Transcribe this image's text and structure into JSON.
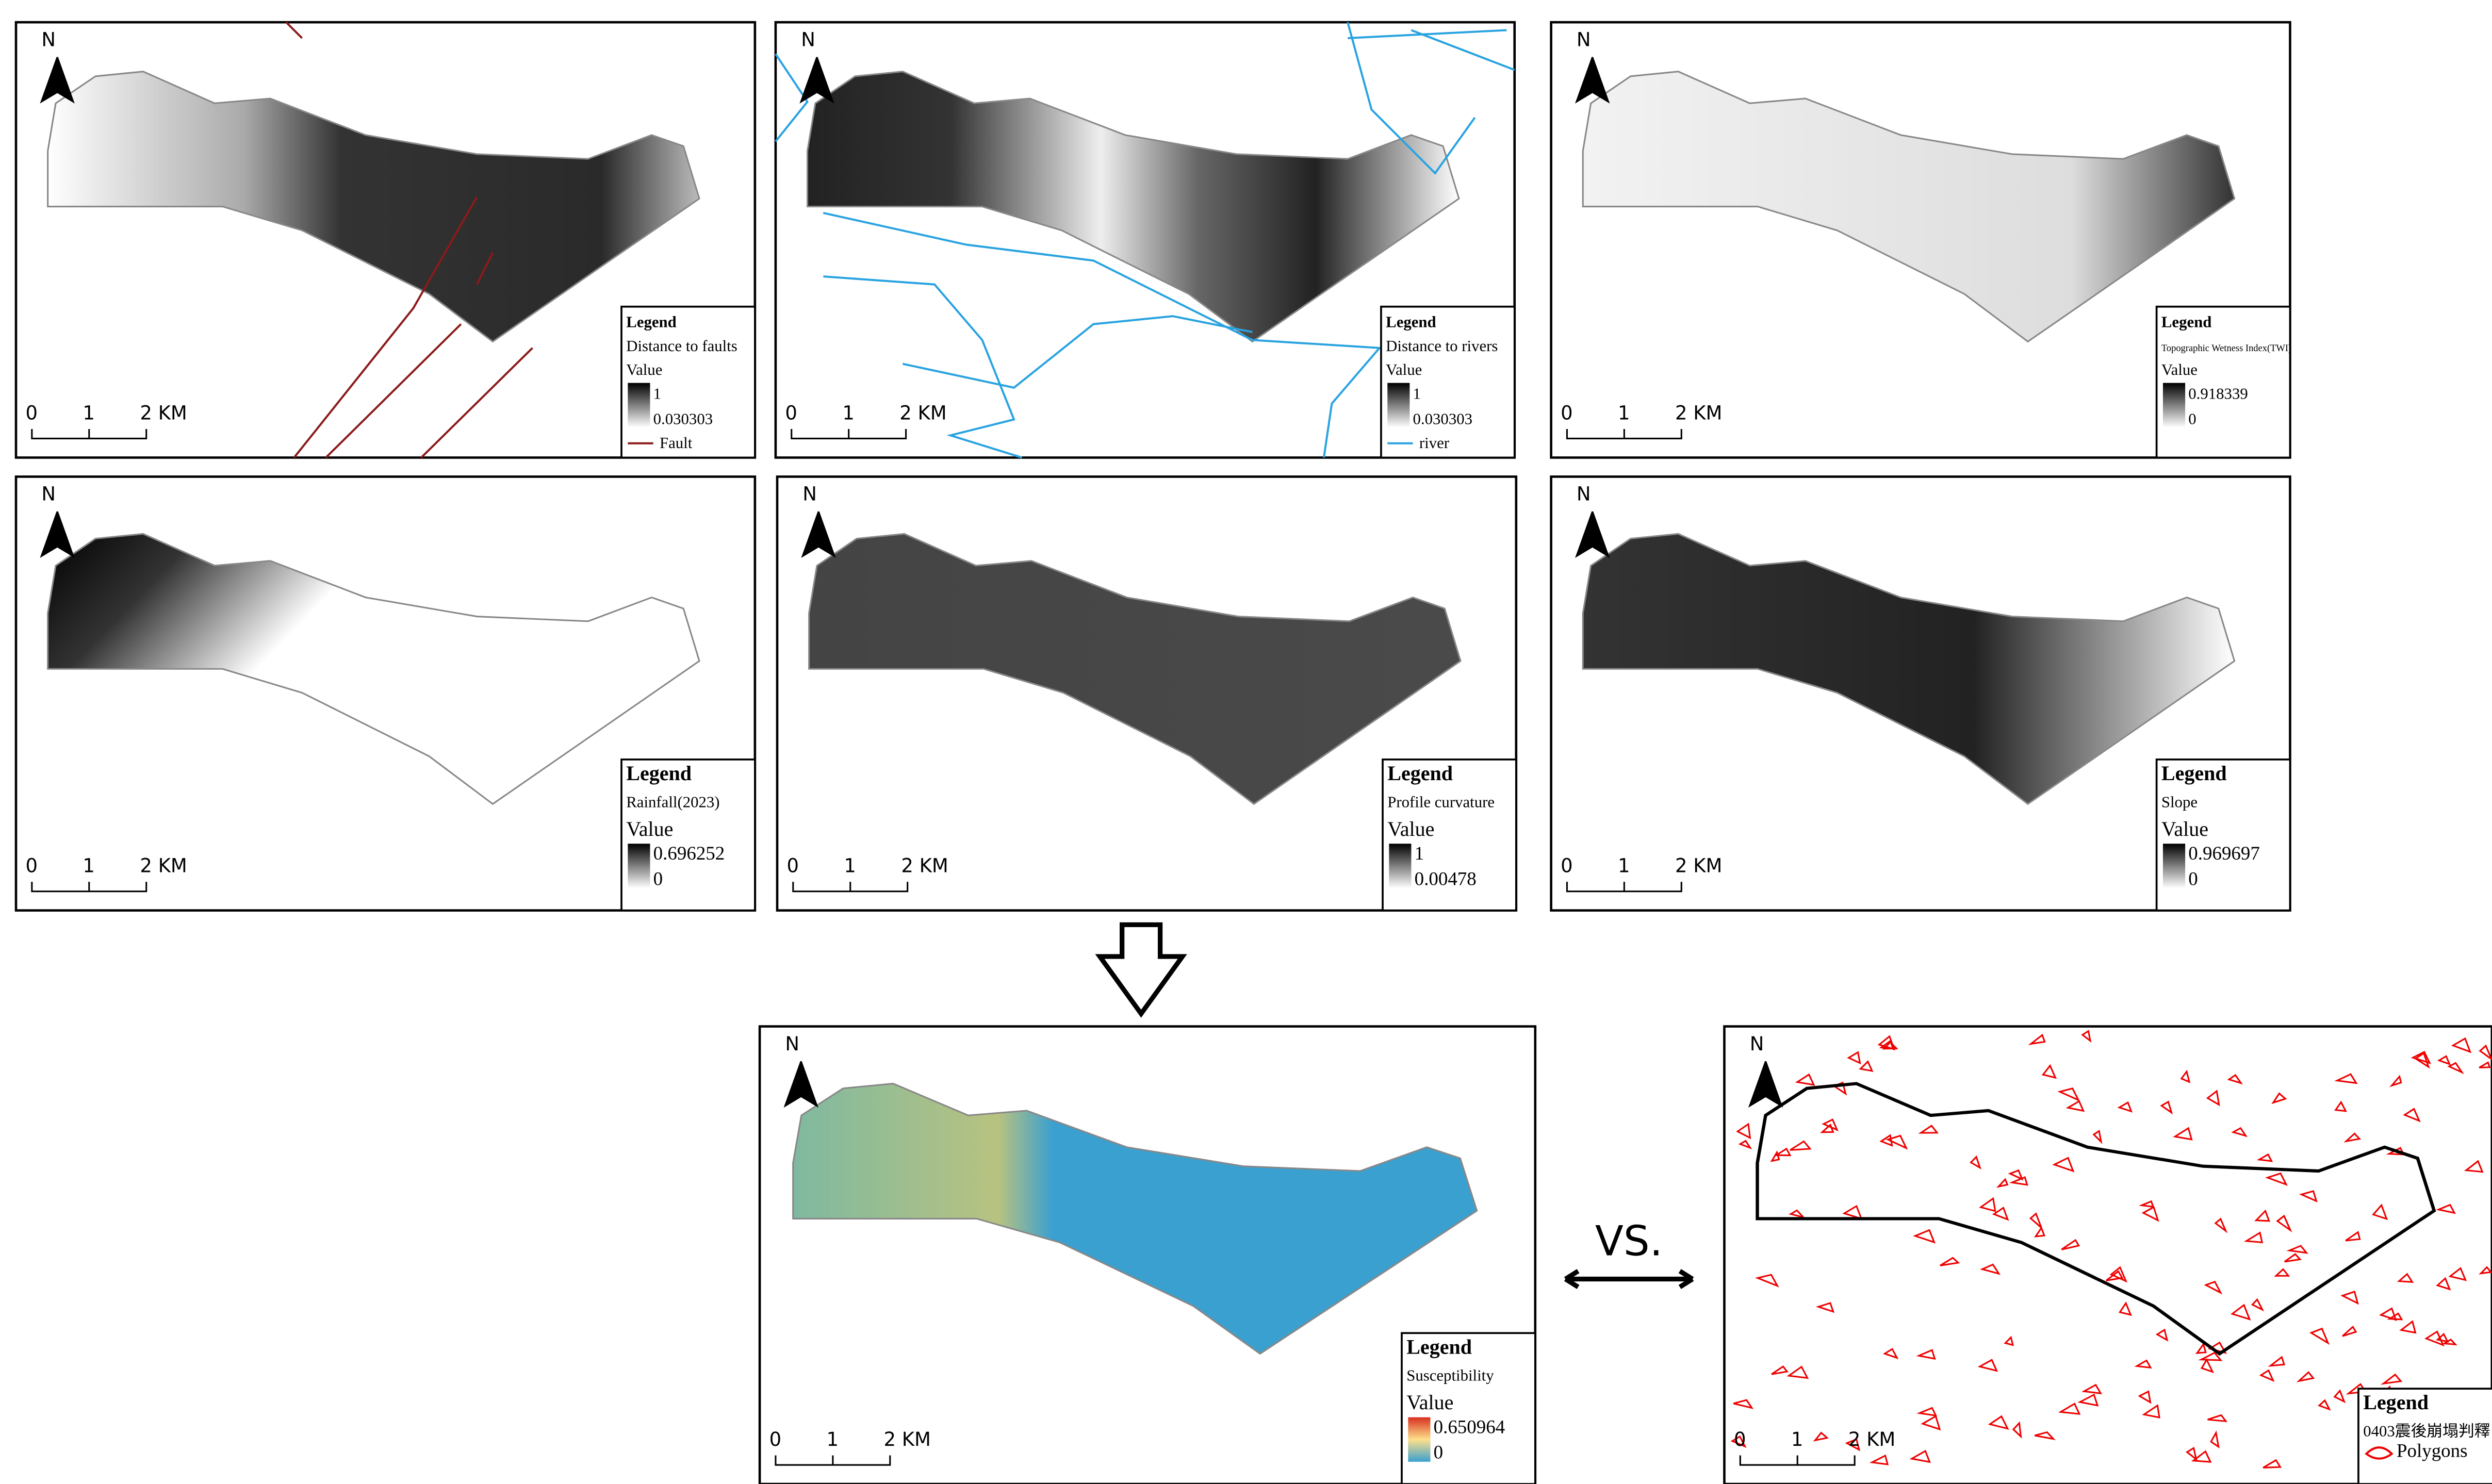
{
  "panels": [
    {
      "north": "N",
      "scale": [
        "0",
        "1",
        "2 KM"
      ],
      "legend": {
        "title": "Legend",
        "layer": "Distance to faults",
        "value": "Value",
        "max": "1",
        "min": "0.030303",
        "item": "Fault"
      }
    },
    {
      "north": "N",
      "scale": [
        "0",
        "1",
        "2 KM"
      ],
      "legend": {
        "title": "Legend",
        "layer": "Distance to rivers",
        "value": "Value",
        "max": "1",
        "min": "0.030303",
        "item": "river"
      }
    },
    {
      "north": "N",
      "scale": [
        "0",
        "1",
        "2 KM"
      ],
      "legend": {
        "title": "Legend",
        "layer": "Topographic Wetness Index(TWI)",
        "value": "Value",
        "max": "0.918339",
        "min": "0"
      }
    },
    {
      "north": "N",
      "scale": [
        "0",
        "1",
        "2 KM"
      ],
      "legend": {
        "title": "Legend",
        "layer": "Rainfall(2023)",
        "value": "Value",
        "max": "0.696252",
        "min": "0"
      }
    },
    {
      "north": "N",
      "scale": [
        "0",
        "1",
        "2 KM"
      ],
      "legend": {
        "title": "Legend",
        "layer": "Profile curvature",
        "value": "Value",
        "max": "1",
        "min": "0.00478"
      }
    },
    {
      "north": "N",
      "scale": [
        "0",
        "1",
        "2 KM"
      ],
      "legend": {
        "title": "Legend",
        "layer": "Slope",
        "value": "Value",
        "max": "0.969697",
        "min": "0"
      }
    },
    {
      "north": "N",
      "scale": [
        "0",
        "1",
        "2 KM"
      ],
      "legend": {
        "title": "Legend",
        "layer": "Susceptibility",
        "value": "Value",
        "max": "0.650964",
        "min": "0"
      }
    },
    {
      "north": "N",
      "scale": [
        "0",
        "1",
        "2 KM"
      ],
      "legend": {
        "title": "Legend",
        "layer": "0403震後崩塌判釋",
        "item": "Polygons"
      }
    }
  ],
  "vs": "VS."
}
